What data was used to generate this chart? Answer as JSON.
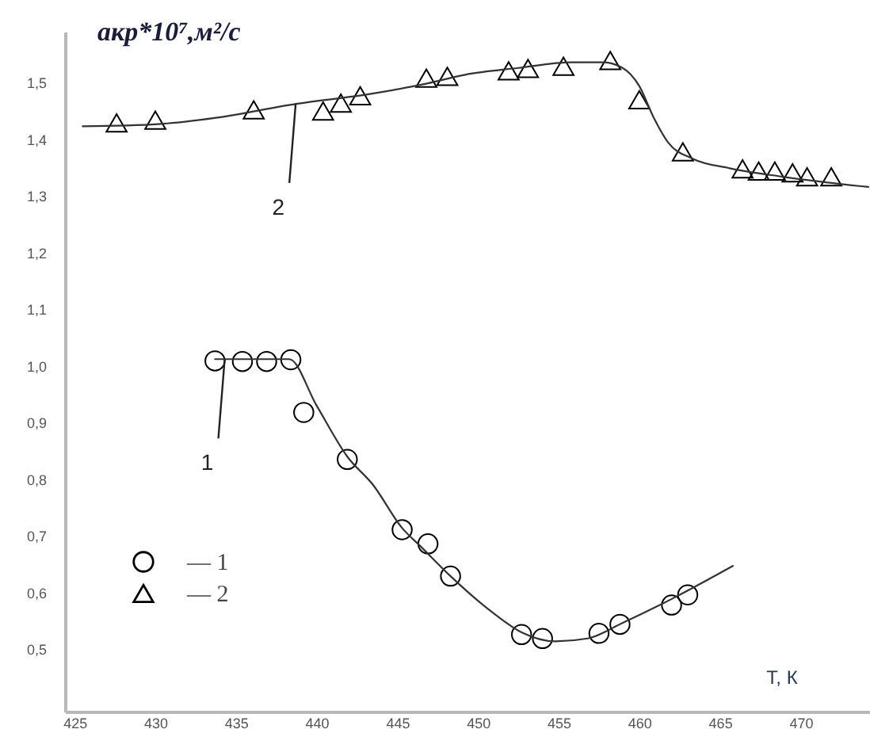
{
  "chart_data": {
    "type": "scatter",
    "ylabel": "aкр*10⁷,м²/с",
    "xlabel": "Т, К",
    "xlim": [
      424.4,
      474.3
    ],
    "xticks": [
      425,
      430,
      435,
      440,
      445,
      450,
      455,
      460,
      465,
      470
    ],
    "ylim": [
      0.39,
      1.59
    ],
    "yticks": [
      {
        "value": 0.5,
        "label": "0,5"
      },
      {
        "value": 0.6,
        "label": "0,6"
      },
      {
        "value": 0.7,
        "label": "0,7"
      },
      {
        "value": 0.8,
        "label": "0,8"
      },
      {
        "value": 0.9,
        "label": "0,9"
      },
      {
        "value": 1.0,
        "label": "1,0"
      },
      {
        "value": 1.1,
        "label": "1,1"
      },
      {
        "value": 1.2,
        "label": "1,2"
      },
      {
        "value": 1.3,
        "label": "1,3"
      },
      {
        "value": 1.4,
        "label": "1,4"
      },
      {
        "value": 1.5,
        "label": "1,5"
      }
    ],
    "grid": false,
    "legend": "bottom left",
    "series": [
      {
        "name": "— 1",
        "color": "#000000",
        "marker": "circle",
        "x": [
          433.7,
          435.4,
          436.9,
          438.4,
          439.2,
          441.9,
          445.3,
          446.9,
          448.3,
          452.7,
          454.0,
          457.5,
          458.8,
          462.0,
          463.0
        ],
        "values": [
          1.009,
          1.008,
          1.008,
          1.011,
          0.918,
          0.835,
          0.711,
          0.686,
          0.629,
          0.526,
          0.519,
          0.528,
          0.544,
          0.578,
          0.596
        ]
      },
      {
        "name": "— 2",
        "color": "#000000",
        "marker": "triangle",
        "x": [
          427.6,
          430.0,
          436.1,
          440.4,
          441.5,
          442.7,
          446.8,
          448.1,
          451.9,
          453.1,
          455.3,
          458.2,
          460.0,
          462.7,
          466.4,
          467.4,
          468.4,
          469.5,
          470.4,
          471.9
        ],
        "values": [
          1.429,
          1.434,
          1.452,
          1.45,
          1.464,
          1.477,
          1.508,
          1.511,
          1.521,
          1.525,
          1.529,
          1.539,
          1.47,
          1.378,
          1.348,
          1.344,
          1.344,
          1.341,
          1.334,
          1.334
        ]
      },
      {
        "type": "line",
        "color": "#333333",
        "marker": "none",
        "x": [
          433.7,
          436.0,
          438.3,
          440.0,
          441.9,
          443.5,
          445.3,
          446.5,
          448.3,
          450.9,
          452.7,
          454.8,
          456.8,
          459.0,
          462.3,
          465.8
        ],
        "values": [
          1.012,
          1.012,
          1.012,
          0.93,
          0.84,
          0.79,
          0.714,
          0.68,
          0.629,
          0.565,
          0.53,
          0.514,
          0.519,
          0.547,
          0.593,
          0.647
        ]
      },
      {
        "type": "line",
        "color": "#333333",
        "marker": "none",
        "x": [
          425.5,
          430.2,
          433.5,
          438.8,
          443.3,
          446.9,
          449.2,
          452.5,
          455.8,
          457.7,
          458.9,
          460.0,
          460.9,
          461.8,
          463.3,
          465.6,
          468.9,
          474.2
        ],
        "values": [
          1.423,
          1.427,
          1.437,
          1.463,
          1.48,
          1.499,
          1.514,
          1.526,
          1.536,
          1.536,
          1.527,
          1.494,
          1.438,
          1.394,
          1.366,
          1.349,
          1.334,
          1.316
        ]
      }
    ],
    "annotations": [
      {
        "text": "1",
        "x": 434.3,
        "y": 1.012
      },
      {
        "text": "2",
        "x": 438.7,
        "y": 1.463
      }
    ]
  }
}
